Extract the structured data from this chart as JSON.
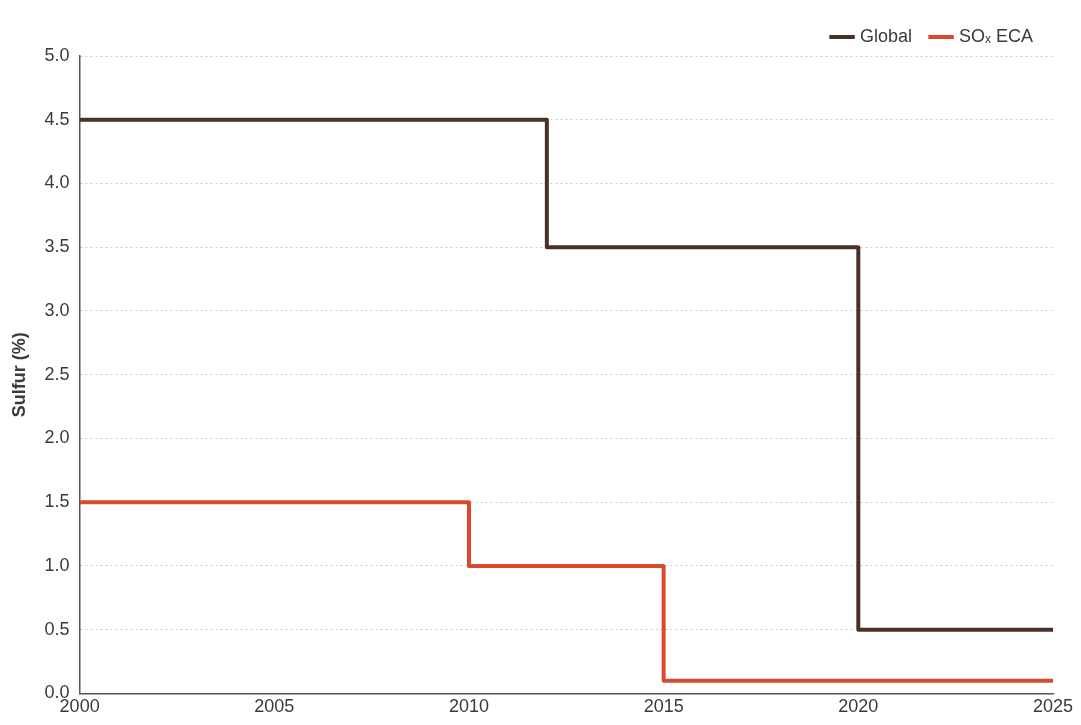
{
  "chart_data": {
    "type": "step",
    "ylabel": "Sulfur (%)",
    "xlim": [
      2000,
      2025
    ],
    "xticks": [
      2000,
      2005,
      2010,
      2015,
      2020,
      2025
    ],
    "ylim": [
      0,
      5
    ],
    "yticks": [
      {
        "value": 0,
        "label": "0.0"
      },
      {
        "value": 0.5,
        "label": "0.5"
      },
      {
        "value": 1,
        "label": "1.0"
      },
      {
        "value": 1.5,
        "label": "1.5"
      },
      {
        "value": 2,
        "label": "2.0"
      },
      {
        "value": 2.5,
        "label": "2.5"
      },
      {
        "value": 3,
        "label": "3.0"
      },
      {
        "value": 3.5,
        "label": "3.5"
      },
      {
        "value": 4,
        "label": "4.0"
      },
      {
        "value": 4.5,
        "label": "4.5"
      },
      {
        "value": 5,
        "label": "5.0"
      }
    ],
    "grid": "y",
    "legend": "top right",
    "marker": "none",
    "line_style": "solid",
    "series": [
      {
        "name": "Global",
        "color": "#4a3128",
        "x": [
          2000,
          2012,
          2020,
          2025
        ],
        "values": [
          4.5,
          3.5,
          0.5,
          0.5
        ]
      },
      {
        "name": "SOₓ ECA",
        "color": "#d84a2e",
        "x": [
          2000,
          2010,
          2015,
          2025
        ],
        "values": [
          1.5,
          1.0,
          0.1,
          0.1
        ]
      }
    ]
  }
}
